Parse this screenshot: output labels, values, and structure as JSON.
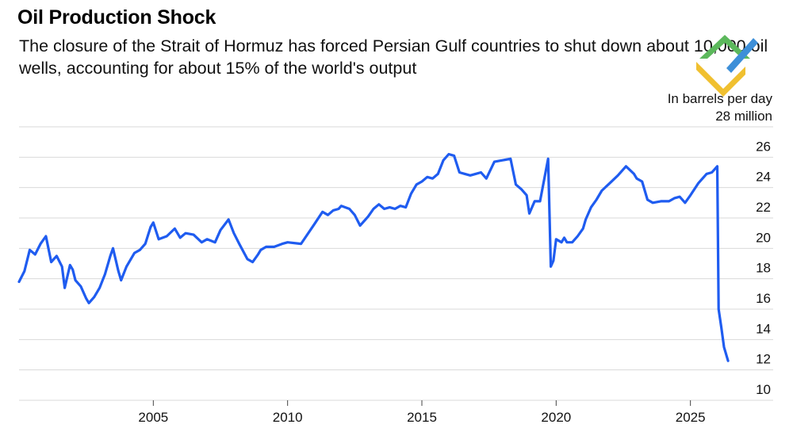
{
  "title": "Oil Production Shock",
  "subtitle": "The closure of the Strait of Hormuz has forced Persian Gulf countries to shut down about 10,000 oil wells, accounting for about 15% of the world's output",
  "unit_line1": "In barrels per day",
  "unit_line2": "28 million",
  "colors": {
    "line": "#1f5cf0",
    "grid": "#d9d9d9",
    "logo_green": "#5cb85c",
    "logo_yellow": "#f0c030",
    "logo_blue": "#3d8fd8"
  },
  "logo_icon": "diamond-arrow-logo-icon",
  "chart_data": {
    "type": "line",
    "title": "Oil Production Shock",
    "ylabel": "In barrels per day",
    "xlim": [
      2000,
      2026.9
    ],
    "ylim": [
      10,
      28
    ],
    "y_ticks": [
      10,
      12,
      14,
      16,
      18,
      20,
      22,
      24,
      26
    ],
    "x_ticks": [
      2005,
      2010,
      2015,
      2020,
      2025
    ],
    "grid": true,
    "series": [
      {
        "x": [
          2000.0,
          2000.2,
          2000.4,
          2000.6,
          2000.8,
          2001.0,
          2001.2,
          2001.4,
          2001.6,
          2001.7,
          2001.9,
          2002.0,
          2002.1,
          2002.3,
          2002.5,
          2002.6,
          2002.8,
          2003.0,
          2003.2,
          2003.4,
          2003.5,
          2003.7,
          2003.8,
          2004.0,
          2004.3,
          2004.5,
          2004.7,
          2004.9,
          2005.0,
          2005.2,
          2005.5,
          2005.8,
          2006.0,
          2006.2,
          2006.5,
          2006.8,
          2007.0,
          2007.3,
          2007.5,
          2007.8,
          2008.0,
          2008.2,
          2008.5,
          2008.7,
          2008.9,
          2009.0,
          2009.2,
          2009.5,
          2009.8,
          2010.0,
          2010.5,
          2011.0,
          2011.3,
          2011.5,
          2011.7,
          2011.9,
          2012.0,
          2012.3,
          2012.5,
          2012.7,
          2012.9,
          2013.0,
          2013.2,
          2013.4,
          2013.6,
          2013.8,
          2014.0,
          2014.2,
          2014.4,
          2014.6,
          2014.8,
          2015.0,
          2015.2,
          2015.4,
          2015.6,
          2015.8,
          2016.0,
          2016.2,
          2016.4,
          2016.6,
          2016.8,
          2017.0,
          2017.2,
          2017.4,
          2017.7,
          2018.0,
          2018.3,
          2018.5,
          2018.7,
          2018.9,
          2019.0,
          2019.2,
          2019.4,
          2019.7,
          2019.8,
          2019.9,
          2020.0,
          2020.2,
          2020.3,
          2020.4,
          2020.6,
          2020.8,
          2021.0,
          2021.1,
          2021.3,
          2021.5,
          2021.7,
          2022.0,
          2022.3,
          2022.6,
          2022.9,
          2023.0,
          2023.2,
          2023.4,
          2023.6,
          2023.9,
          2024.2,
          2024.4,
          2024.6,
          2024.8,
          2025.0,
          2025.3,
          2025.6,
          2025.8,
          2026.0,
          2026.05,
          2026.15,
          2026.25,
          2026.4
        ],
        "y": [
          17.8,
          18.5,
          19.9,
          19.6,
          20.3,
          20.8,
          19.1,
          19.5,
          18.8,
          17.4,
          18.9,
          18.6,
          17.9,
          17.5,
          16.7,
          16.4,
          16.8,
          17.4,
          18.3,
          19.5,
          20.0,
          18.5,
          17.9,
          18.8,
          19.7,
          19.9,
          20.3,
          21.4,
          21.7,
          20.6,
          20.8,
          21.3,
          20.7,
          21.0,
          20.9,
          20.4,
          20.6,
          20.4,
          21.2,
          21.9,
          21.0,
          20.3,
          19.3,
          19.1,
          19.6,
          19.9,
          20.1,
          20.1,
          20.3,
          20.4,
          20.3,
          21.6,
          22.4,
          22.2,
          22.5,
          22.6,
          22.8,
          22.6,
          22.2,
          21.5,
          21.9,
          22.1,
          22.6,
          22.9,
          22.6,
          22.7,
          22.6,
          22.8,
          22.7,
          23.6,
          24.2,
          24.4,
          24.7,
          24.6,
          24.9,
          25.8,
          26.2,
          26.1,
          25.0,
          24.9,
          24.8,
          24.9,
          25.0,
          24.6,
          25.7,
          25.8,
          25.9,
          24.2,
          23.9,
          23.5,
          22.3,
          23.1,
          23.1,
          25.9,
          18.8,
          19.2,
          20.6,
          20.4,
          20.7,
          20.4,
          20.4,
          20.8,
          21.3,
          21.9,
          22.7,
          23.2,
          23.8,
          24.3,
          24.8,
          25.4,
          24.9,
          24.6,
          24.4,
          23.2,
          23.0,
          23.1,
          23.1,
          23.3,
          23.4,
          23.0,
          23.5,
          24.3,
          24.9,
          25.0,
          25.4,
          16.0,
          14.8,
          13.5,
          12.6
        ]
      }
    ]
  }
}
